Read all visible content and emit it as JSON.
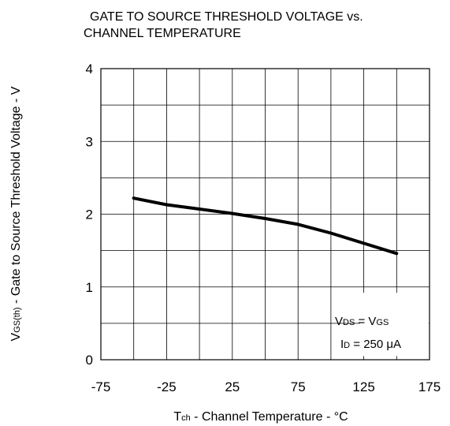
{
  "chart_data": {
    "type": "line",
    "title": "GATE TO SOURCE THRESHOLD VOLTAGE vs. CHANNEL TEMPERATURE",
    "title_lines": [
      "GATE TO SOURCE THRESHOLD VOLTAGE vs.",
      "CHANNEL TEMPERATURE"
    ],
    "xlabel": {
      "symbol": "T",
      "sub": "ch",
      "text": " - Channel Temperature - °C"
    },
    "ylabel": {
      "symbol": "V",
      "sub": "GS(th)",
      "text": " - Gate to Source Threshold Voltage - V"
    },
    "xlim": [
      -75,
      175
    ],
    "ylim": [
      0,
      4
    ],
    "x_ticks": [
      -75,
      -25,
      25,
      75,
      125,
      175
    ],
    "x_tick_labels": [
      "-75",
      "-25",
      "25",
      "75",
      "125",
      "175"
    ],
    "y_ticks": [
      0,
      1,
      2,
      3,
      4
    ],
    "y_tick_labels": [
      "0",
      "1",
      "2",
      "3",
      "4"
    ],
    "x_grid_step": 25,
    "y_grid_step": 0.5,
    "grid": true,
    "series": [
      {
        "x": [
          -50,
          -25,
          0,
          25,
          50,
          75,
          100,
          125,
          150
        ],
        "y": [
          2.22,
          2.13,
          2.07,
          2.01,
          1.94,
          1.86,
          1.74,
          1.6,
          1.46
        ]
      }
    ],
    "annotations": [
      {
        "parts": [
          [
            "V",
            ""
          ],
          [
            "DS",
            "sub"
          ],
          [
            " = V",
            ""
          ],
          [
            "GS",
            "sub"
          ]
        ]
      },
      {
        "parts": [
          [
            "I",
            ""
          ],
          [
            "D",
            "sub"
          ],
          [
            " = 250 μA",
            ""
          ]
        ]
      }
    ],
    "line_color": "#000000",
    "grid_color": "#000000"
  }
}
